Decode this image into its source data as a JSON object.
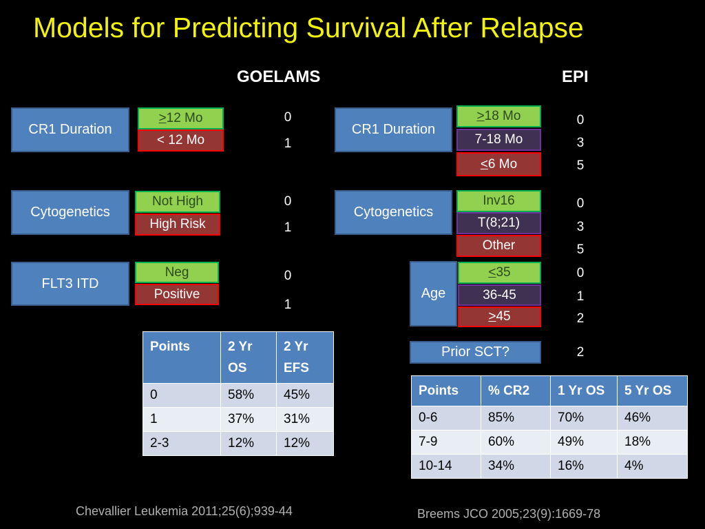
{
  "title": "Models for Predicting Survival After Relapse",
  "goelams": {
    "header": "GOELAMS",
    "factors": [
      {
        "label": "CR1 Duration",
        "options": [
          {
            "sym": ">",
            "text": " 12 Mo",
            "points": "0"
          },
          {
            "sym": "",
            "text": "< 12 Mo",
            "points": "1"
          }
        ]
      },
      {
        "label": "Cytogenetics",
        "options": [
          {
            "sym": "",
            "text": "Not High",
            "points": "0"
          },
          {
            "sym": "",
            "text": "High Risk",
            "points": "1"
          }
        ]
      },
      {
        "label": "FLT3 ITD",
        "options": [
          {
            "sym": "",
            "text": "Neg",
            "points": "0"
          },
          {
            "sym": "",
            "text": "Positive",
            "points": "1"
          }
        ]
      }
    ],
    "table": {
      "headers": [
        "Points",
        "2 Yr OS",
        "2 Yr EFS"
      ],
      "rows": [
        [
          "0",
          "58%",
          "45%"
        ],
        [
          "1",
          "37%",
          "31%"
        ],
        [
          "2-3",
          "12%",
          " 12%"
        ]
      ]
    },
    "citation": "Chevallier Leukemia 2011;25(6);939-44"
  },
  "epi": {
    "header": "EPI",
    "factors": [
      {
        "label": "CR1 Duration",
        "options": [
          {
            "sym": ">",
            "text": " 18 Mo",
            "points": "0"
          },
          {
            "sym": "",
            "text": "7-18 Mo",
            "points": "3"
          },
          {
            "sym": "<",
            "text": " 6 Mo",
            "points": "5"
          }
        ]
      },
      {
        "label": "Cytogenetics",
        "options": [
          {
            "sym": "",
            "text": "Inv16",
            "points": "0"
          },
          {
            "sym": "",
            "text": "T(8;21)",
            "points": "3"
          },
          {
            "sym": "",
            "text": "Other",
            "points": "5"
          }
        ]
      },
      {
        "label": "Age",
        "options": [
          {
            "sym": "<",
            "text": "35",
            "points": "0"
          },
          {
            "sym": "",
            "text": "36-45",
            "points": "1"
          },
          {
            "sym": ">",
            "text": "45",
            "points": "2"
          }
        ]
      }
    ],
    "prior": {
      "label": "Prior SCT?",
      "points": "2"
    },
    "table": {
      "headers": [
        "Points",
        "% CR2",
        "1 Yr OS",
        "5 Yr OS"
      ],
      "rows": [
        [
          "0-6",
          "85%",
          "70%",
          "46%"
        ],
        [
          "7-9",
          "60%",
          "49%",
          "18%"
        ],
        [
          "10-14",
          "34%",
          "16%",
          " 4%"
        ]
      ]
    },
    "citation": "Breems JCO 2005;23(9):1669-78"
  },
  "colors": {
    "title": "#f2f20a",
    "blue": "#4f81bd",
    "green": "#92d050",
    "red": "#943634",
    "purple": "#3f3151"
  }
}
